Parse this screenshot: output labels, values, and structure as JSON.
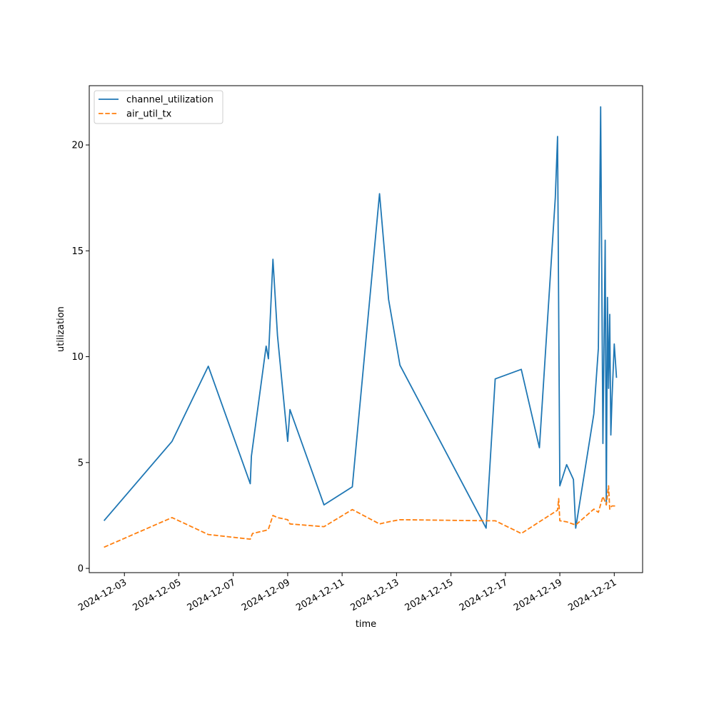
{
  "chart_data": {
    "type": "line",
    "title": "",
    "xlabel": "time",
    "ylabel": "utilization",
    "xlim": [
      "2024-12-01T17:00",
      "2024-12-22T01:00"
    ],
    "ylim": [
      -0.2,
      22.8
    ],
    "x_ticks": [
      "2024-12-03",
      "2024-12-05",
      "2024-12-07",
      "2024-12-09",
      "2024-12-11",
      "2024-12-13",
      "2024-12-15",
      "2024-12-17",
      "2024-12-19",
      "2024-12-21"
    ],
    "y_ticks": [
      0,
      5,
      10,
      15,
      20
    ],
    "grid": false,
    "legend_position": "upper-left",
    "series": [
      {
        "name": "channel_utilization",
        "color": "#1f77b4",
        "style": "solid",
        "x": [
          "2024-12-02T06:00",
          "2024-12-04T18:00",
          "2024-12-06T02:00",
          "2024-12-07T15:00",
          "2024-12-07T16:00",
          "2024-12-08T05:00",
          "2024-12-08T07:00",
          "2024-12-08T11:00",
          "2024-12-08T15:00",
          "2024-12-09T00:00",
          "2024-12-09T02:00",
          "2024-12-10T08:00",
          "2024-12-11T09:00",
          "2024-12-12T09:00",
          "2024-12-12T17:00",
          "2024-12-13T03:00",
          "2024-12-16T07:00",
          "2024-12-16T15:00",
          "2024-12-17T14:00",
          "2024-12-18T06:00",
          "2024-12-18T20:00",
          "2024-12-18T22:00",
          "2024-12-19T00:00",
          "2024-12-19T06:00",
          "2024-12-19T12:00",
          "2024-12-19T14:00",
          "2024-12-20T06:00",
          "2024-12-20T10:00",
          "2024-12-20T12:00",
          "2024-12-20T14:00",
          "2024-12-20T16:00",
          "2024-12-20T17:00",
          "2024-12-20T18:00",
          "2024-12-20T19:00",
          "2024-12-20T20:00",
          "2024-12-20T21:00",
          "2024-12-20T22:00",
          "2024-12-21T00:00",
          "2024-12-21T02:00"
        ],
        "y": [
          2.25,
          6.0,
          9.55,
          4.0,
          5.3,
          10.5,
          9.9,
          14.6,
          11.0,
          6.0,
          7.5,
          3.0,
          3.85,
          17.7,
          12.7,
          9.6,
          1.9,
          8.95,
          9.4,
          5.7,
          17.5,
          20.4,
          3.9,
          4.9,
          4.2,
          1.9,
          7.3,
          10.4,
          21.8,
          5.9,
          15.5,
          3.0,
          12.8,
          8.5,
          12.0,
          6.3,
          8.0,
          10.6,
          9.0
        ]
      },
      {
        "name": "air_util_tx",
        "color": "#ff7f0e",
        "style": "dashed",
        "x": [
          "2024-12-02T06:00",
          "2024-12-04T18:00",
          "2024-12-06T02:00",
          "2024-12-07T15:00",
          "2024-12-07T17:00",
          "2024-12-08T05:00",
          "2024-12-08T07:00",
          "2024-12-08T11:00",
          "2024-12-08T15:00",
          "2024-12-09T00:00",
          "2024-12-09T02:00",
          "2024-12-10T08:00",
          "2024-12-11T09:00",
          "2024-12-12T09:00",
          "2024-12-12T17:00",
          "2024-12-13T03:00",
          "2024-12-16T07:00",
          "2024-12-16T15:00",
          "2024-12-17T14:00",
          "2024-12-18T22:00",
          "2024-12-18T23:00",
          "2024-12-19T00:00",
          "2024-12-19T06:00",
          "2024-12-19T14:00",
          "2024-12-20T06:00",
          "2024-12-20T10:00",
          "2024-12-20T14:00",
          "2024-12-20T17:00",
          "2024-12-20T19:00",
          "2024-12-20T20:00",
          "2024-12-20T21:00",
          "2024-12-20T22:00",
          "2024-12-21T02:00"
        ],
        "y": [
          1.0,
          2.4,
          1.6,
          1.38,
          1.65,
          1.8,
          1.85,
          2.5,
          2.4,
          2.3,
          2.1,
          1.97,
          2.78,
          2.1,
          2.2,
          2.3,
          2.25,
          2.25,
          1.65,
          2.75,
          3.3,
          2.25,
          2.2,
          2.05,
          2.8,
          2.65,
          3.4,
          3.0,
          3.9,
          2.8,
          2.9,
          2.95,
          2.95
        ]
      }
    ]
  }
}
